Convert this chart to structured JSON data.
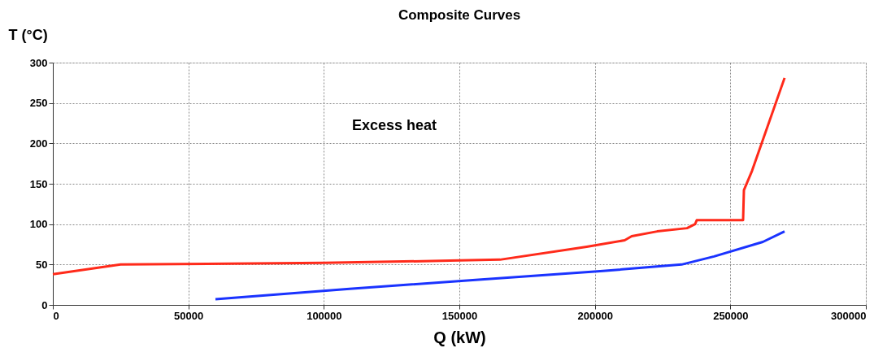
{
  "chart_data": {
    "type": "line",
    "title": "Composite Curves",
    "xlabel": "Q (kW)",
    "ylabel": "T (°C)",
    "series": [
      {
        "color": "#ff2a1a",
        "x": [
          0,
          25000,
          100000,
          150000,
          165000,
          197000,
          211000,
          213600,
          223000,
          234000,
          237000,
          237600,
          254700,
          255000,
          258000,
          270000
        ],
        "values": [
          38,
          50,
          52,
          55,
          56,
          72,
          80,
          85,
          91,
          95,
          100,
          105,
          105,
          142,
          166,
          281
        ]
      },
      {
        "color": "#1a33ff",
        "x": [
          60000,
          109500,
          156000,
          203000,
          232000,
          244000,
          262000,
          270000
        ],
        "values": [
          7,
          20,
          31,
          42,
          50,
          60,
          78,
          91
        ]
      }
    ],
    "xlim": [
      0,
      300000
    ],
    "xticks": [
      0,
      50000,
      100000,
      150000,
      200000,
      250000,
      300000
    ],
    "ylim": [
      0,
      300
    ],
    "yticks": [
      0,
      50,
      100,
      150,
      200,
      250,
      300
    ],
    "grid": true,
    "marker": "none",
    "line_style": "solid",
    "annotations": [
      "Excess heat"
    ]
  }
}
